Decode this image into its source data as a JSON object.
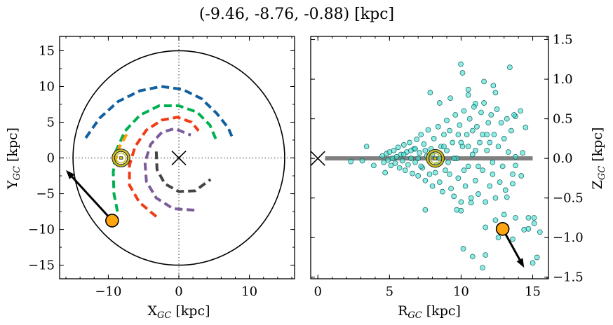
{
  "title": "(-9.46, -8.76, -0.88) [kpc]",
  "chart_data": [
    {
      "type": "line",
      "panel": "left",
      "xlabel": {
        "main": "X",
        "sub": "GC",
        "unit": " [kpc]"
      },
      "ylabel": {
        "main": "Y",
        "sub": "GC",
        "unit": " [kpc]"
      },
      "xlim": [
        -16.9,
        16.4
      ],
      "ylim": [
        -16.9,
        17.0
      ],
      "xticks": [
        -10,
        0,
        10
      ],
      "yticks": [
        -15,
        -10,
        -5,
        0,
        5,
        10,
        15
      ],
      "xtick_labels": [
        "−10",
        "0",
        "10"
      ],
      "ytick_labels": [
        "−15",
        "−10",
        "−5",
        "0",
        "5",
        "10",
        "15"
      ],
      "grid": false,
      "boundary_circle_radius": 15,
      "galactic_center": [
        0,
        0
      ],
      "sun": [
        -8.2,
        0
      ],
      "object": [
        -9.46,
        -8.76
      ],
      "velocity_arrow_tip": [
        -16.0,
        -1.7
      ],
      "colors": {
        "blue": "#1360a0",
        "green": "#00b04f",
        "red": "#f03c14",
        "purple": "#7b5c9a",
        "gray": "#444444",
        "orange": "#ff9a00",
        "object": "#ffa510",
        "sun": "#c8c020"
      },
      "arms": [
        {
          "color": "blue",
          "points": [
            [
              -13.2,
              2.8
            ],
            [
              -11.2,
              5.6
            ],
            [
              -8.6,
              7.9
            ],
            [
              -5.5,
              9.4
            ],
            [
              -2.5,
              10.0
            ],
            [
              0.5,
              9.6
            ],
            [
              3.2,
              8.3
            ],
            [
              5.4,
              6.2
            ],
            [
              7.0,
              4.2
            ],
            [
              7.6,
              2.8
            ]
          ]
        },
        {
          "color": "green",
          "points": [
            [
              -8.7,
              -7.5
            ],
            [
              -9.2,
              -5
            ],
            [
              -9.3,
              -2
            ],
            [
              -8.9,
              1
            ],
            [
              -7.6,
              3.8
            ],
            [
              -5.5,
              6.0
            ],
            [
              -2.8,
              7.3
            ],
            [
              0,
              7.3
            ],
            [
              2.6,
              6.4
            ],
            [
              4.4,
              4.6
            ],
            [
              5.3,
              2.5
            ]
          ]
        },
        {
          "color": "red",
          "points": [
            [
              -3.2,
              -8.2
            ],
            [
              -5.6,
              -6.2
            ],
            [
              -7.0,
              -3.8
            ],
            [
              -7.0,
              -1
            ],
            [
              -6.2,
              1.6
            ],
            [
              -4.6,
              3.9
            ],
            [
              -2.4,
              5.3
            ],
            [
              -0.2,
              5.7
            ],
            [
              1.8,
              5.0
            ],
            [
              2.8,
              3.8
            ]
          ]
        },
        {
          "color": "purple",
          "points": [
            [
              2.2,
              -7.3
            ],
            [
              -0.8,
              -7.1
            ],
            [
              -3.2,
              -5.6
            ],
            [
              -4.6,
              -3.3
            ],
            [
              -4.8,
              -0.6
            ],
            [
              -4.0,
              1.9
            ],
            [
              -2.4,
              3.6
            ],
            [
              -0.6,
              4.1
            ],
            [
              1.7,
              3.2
            ]
          ]
        },
        {
          "color": "gray",
          "points": [
            [
              -3.2,
              0.9
            ],
            [
              -3.1,
              -1.6
            ],
            [
              -2.0,
              -3.6
            ],
            [
              0,
              -4.7
            ],
            [
              2.3,
              -4.6
            ],
            [
              4.5,
              -3.0
            ]
          ]
        },
        {
          "color": "orange",
          "points": [
            [
              -7.4,
              3.3
            ],
            [
              -8.5,
              1.4
            ],
            [
              -9.0,
              -0.4
            ],
            [
              -9.0,
              -1.2
            ]
          ]
        }
      ]
    },
    {
      "type": "scatter",
      "panel": "right",
      "xlabel": {
        "main": "R",
        "sub": "GC",
        "unit": " [kpc]"
      },
      "ylabel": {
        "main": "Z",
        "sub": "GC",
        "unit": " [kpc]"
      },
      "xlim": [
        -0.5,
        16.1
      ],
      "ylim": [
        -1.52,
        1.54
      ],
      "xticks": [
        0,
        5,
        10,
        15
      ],
      "yticks": [
        -1.5,
        -1.0,
        -0.5,
        0.0,
        0.5,
        1.0,
        1.5
      ],
      "xtick_labels": [
        "0",
        "5",
        "10",
        "15"
      ],
      "ytick_labels": [
        "−1.5",
        "−1.0",
        "−0.5",
        "0.0",
        "0.5",
        "1.0",
        "1.5"
      ],
      "ytick_side": "right",
      "grid": false,
      "disk_line": {
        "x": [
          0.5,
          15.0
        ],
        "y": 0,
        "color": "#808080"
      },
      "galactic_center": [
        0,
        0
      ],
      "sun": [
        8.2,
        0
      ],
      "object": [
        12.9,
        -0.89
      ],
      "velocity_arrow_tip": [
        14.4,
        -1.38
      ],
      "point_color": "#40e0d0",
      "points": [
        [
          9.98,
          1.19
        ],
        [
          10.1,
          1.08
        ],
        [
          13.4,
          1.15
        ],
        [
          11.6,
          0.97
        ],
        [
          12.25,
          0.92
        ],
        [
          7.84,
          0.83
        ],
        [
          10.5,
          0.87
        ],
        [
          10.5,
          0.8
        ],
        [
          9.25,
          0.76
        ],
        [
          8.5,
          0.7
        ],
        [
          11.0,
          0.69
        ],
        [
          12.4,
          0.83
        ],
        [
          14.15,
          0.6
        ],
        [
          14.5,
          0.39
        ],
        [
          13.8,
          0.53
        ],
        [
          2.3,
          -0.04
        ],
        [
          3.4,
          0.15
        ],
        [
          3.1,
          -0.03
        ],
        [
          3.9,
          -0.09
        ],
        [
          4.7,
          -0.18
        ],
        [
          7.5,
          -0.65
        ],
        [
          9.7,
          -0.65
        ],
        [
          10.0,
          -0.66
        ],
        [
          10.7,
          -0.56
        ],
        [
          13.0,
          -0.71
        ],
        [
          13.8,
          -0.75
        ],
        [
          14.7,
          -0.75
        ],
        [
          15.1,
          -0.75
        ],
        [
          15.1,
          -0.82
        ],
        [
          14.4,
          -0.9
        ],
        [
          14.7,
          -0.89
        ],
        [
          15.5,
          -0.93
        ],
        [
          11.7,
          -0.87
        ],
        [
          12.4,
          -0.78
        ],
        [
          12.6,
          -1.0
        ],
        [
          13.6,
          -1.02
        ],
        [
          10.15,
          -1.14
        ],
        [
          10.8,
          -1.24
        ],
        [
          11.7,
          -1.22
        ],
        [
          11.5,
          -1.38
        ],
        [
          15.3,
          -1.25
        ],
        [
          15.0,
          -1.32
        ],
        [
          13.8,
          0.02
        ],
        [
          14.3,
          0.07
        ],
        [
          14.2,
          -0.22
        ],
        [
          13.8,
          -0.09
        ],
        [
          13.6,
          -0.32
        ],
        [
          13.2,
          -0.49
        ],
        [
          4.5,
          0.03
        ],
        [
          4.6,
          -0.05
        ],
        [
          4.8,
          0.06
        ],
        [
          4.9,
          -0.02
        ],
        [
          5.0,
          0.08
        ],
        [
          5.1,
          -0.09
        ],
        [
          5.3,
          0.1
        ],
        [
          5.4,
          -0.06
        ],
        [
          5.5,
          0.02
        ],
        [
          5.6,
          0.14
        ],
        [
          5.7,
          -0.12
        ],
        [
          5.8,
          0.05
        ],
        [
          5.9,
          -0.03
        ],
        [
          6.0,
          0.17
        ],
        [
          6.1,
          -0.15
        ],
        [
          6.2,
          0.08
        ],
        [
          6.3,
          -0.08
        ],
        [
          6.4,
          0.2
        ],
        [
          6.5,
          0.0
        ],
        [
          6.6,
          -0.19
        ],
        [
          6.7,
          0.12
        ],
        [
          6.8,
          -0.05
        ],
        [
          6.9,
          0.24
        ],
        [
          7.0,
          -0.22
        ],
        [
          7.1,
          0.07
        ],
        [
          7.2,
          0.3
        ],
        [
          7.3,
          -0.12
        ],
        [
          7.4,
          0.18
        ],
        [
          7.5,
          -0.28
        ],
        [
          7.6,
          0.03
        ],
        [
          7.7,
          0.36
        ],
        [
          7.8,
          -0.2
        ],
        [
          7.9,
          0.12
        ],
        [
          8.0,
          -0.35
        ],
        [
          8.1,
          0.25
        ],
        [
          8.3,
          -0.08
        ],
        [
          8.4,
          0.4
        ],
        [
          8.5,
          -0.3
        ],
        [
          8.6,
          0.15
        ],
        [
          8.7,
          -0.42
        ],
        [
          8.8,
          0.3
        ],
        [
          8.9,
          -0.15
        ],
        [
          9.0,
          0.48
        ],
        [
          9.1,
          -0.05
        ],
        [
          9.2,
          0.35
        ],
        [
          9.3,
          -0.38
        ],
        [
          9.4,
          0.2
        ],
        [
          9.5,
          -0.48
        ],
        [
          9.6,
          0.55
        ],
        [
          9.7,
          0.0
        ],
        [
          9.8,
          -0.25
        ],
        [
          9.9,
          0.42
        ],
        [
          10.0,
          -0.55
        ],
        [
          10.1,
          0.15
        ],
        [
          10.2,
          0.6
        ],
        [
          10.3,
          -0.35
        ],
        [
          10.4,
          0.3
        ],
        [
          10.5,
          -0.1
        ],
        [
          10.6,
          0.5
        ],
        [
          10.7,
          -0.5
        ],
        [
          10.8,
          0.05
        ],
        [
          10.9,
          0.65
        ],
        [
          11.0,
          -0.28
        ],
        [
          11.1,
          0.4
        ],
        [
          11.2,
          -0.45
        ],
        [
          11.3,
          0.2
        ],
        [
          11.4,
          0.58
        ],
        [
          11.5,
          -0.15
        ],
        [
          11.6,
          0.7
        ],
        [
          11.7,
          -0.55
        ],
        [
          11.8,
          0.1
        ],
        [
          11.9,
          0.45
        ],
        [
          12.0,
          -0.35
        ],
        [
          12.1,
          0.55
        ],
        [
          12.2,
          -0.05
        ],
        [
          12.3,
          0.3
        ],
        [
          12.4,
          -0.5
        ],
        [
          12.5,
          0.62
        ],
        [
          12.6,
          0.15
        ],
        [
          12.7,
          -0.3
        ],
        [
          12.8,
          0.45
        ],
        [
          12.9,
          -0.1
        ],
        [
          13.0,
          0.25
        ],
        [
          13.1,
          -0.4
        ],
        [
          13.2,
          0.5
        ],
        [
          13.3,
          0.08
        ],
        [
          13.5,
          0.35
        ],
        [
          13.6,
          -0.2
        ],
        [
          13.7,
          0.55
        ],
        [
          5.2,
          0.0
        ],
        [
          6.0,
          0.05
        ],
        [
          6.5,
          0.1
        ],
        [
          7.0,
          0.0
        ],
        [
          7.5,
          0.1
        ],
        [
          8.0,
          0.05
        ],
        [
          8.5,
          0.0
        ],
        [
          9.0,
          0.1
        ],
        [
          9.5,
          0.0
        ],
        [
          10.0,
          0.2
        ],
        [
          10.5,
          0.15
        ],
        [
          11.0,
          0.1
        ],
        [
          11.5,
          0.3
        ],
        [
          12.0,
          0.2
        ],
        [
          7.2,
          -0.1
        ],
        [
          8.2,
          -0.18
        ],
        [
          9.2,
          -0.2
        ],
        [
          10.2,
          -0.15
        ],
        [
          11.2,
          -0.1
        ],
        [
          12.2,
          -0.2
        ],
        [
          9.8,
          0.3
        ],
        [
          10.8,
          0.35
        ],
        [
          11.8,
          0.3
        ],
        [
          8.8,
          0.15
        ],
        [
          6.8,
          0.12
        ]
      ]
    }
  ]
}
